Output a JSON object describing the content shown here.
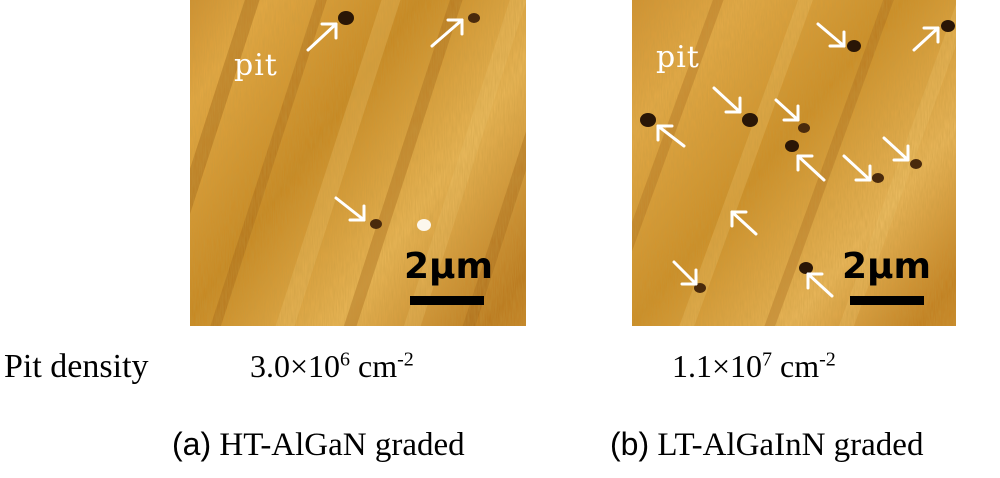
{
  "figure": {
    "row_label": "Pit density",
    "colors": {
      "afm_base": "#c8861c",
      "afm_dark": "#8a4e0c",
      "afm_light": "#f2c266",
      "arrow": "#ffffff",
      "pit": "#2a1606"
    },
    "panels": [
      {
        "id": "a",
        "tag": "(a)",
        "caption": "HT-AlGaN graded",
        "pit_label": "pit",
        "scale_bar_label": "2μm",
        "density_mantissa": "3.0",
        "density_times": "×",
        "density_base": "10",
        "density_exp": "6",
        "density_unit": "cm",
        "density_unit_exp": "-2"
      },
      {
        "id": "b",
        "tag": "(b)",
        "caption": "LT-AlGaInN graded",
        "pit_label": "pit",
        "scale_bar_label": "2μm",
        "density_mantissa": "1.1",
        "density_times": "×",
        "density_base": "10",
        "density_exp": "7",
        "density_unit": "cm",
        "density_unit_exp": "-2"
      }
    ]
  }
}
